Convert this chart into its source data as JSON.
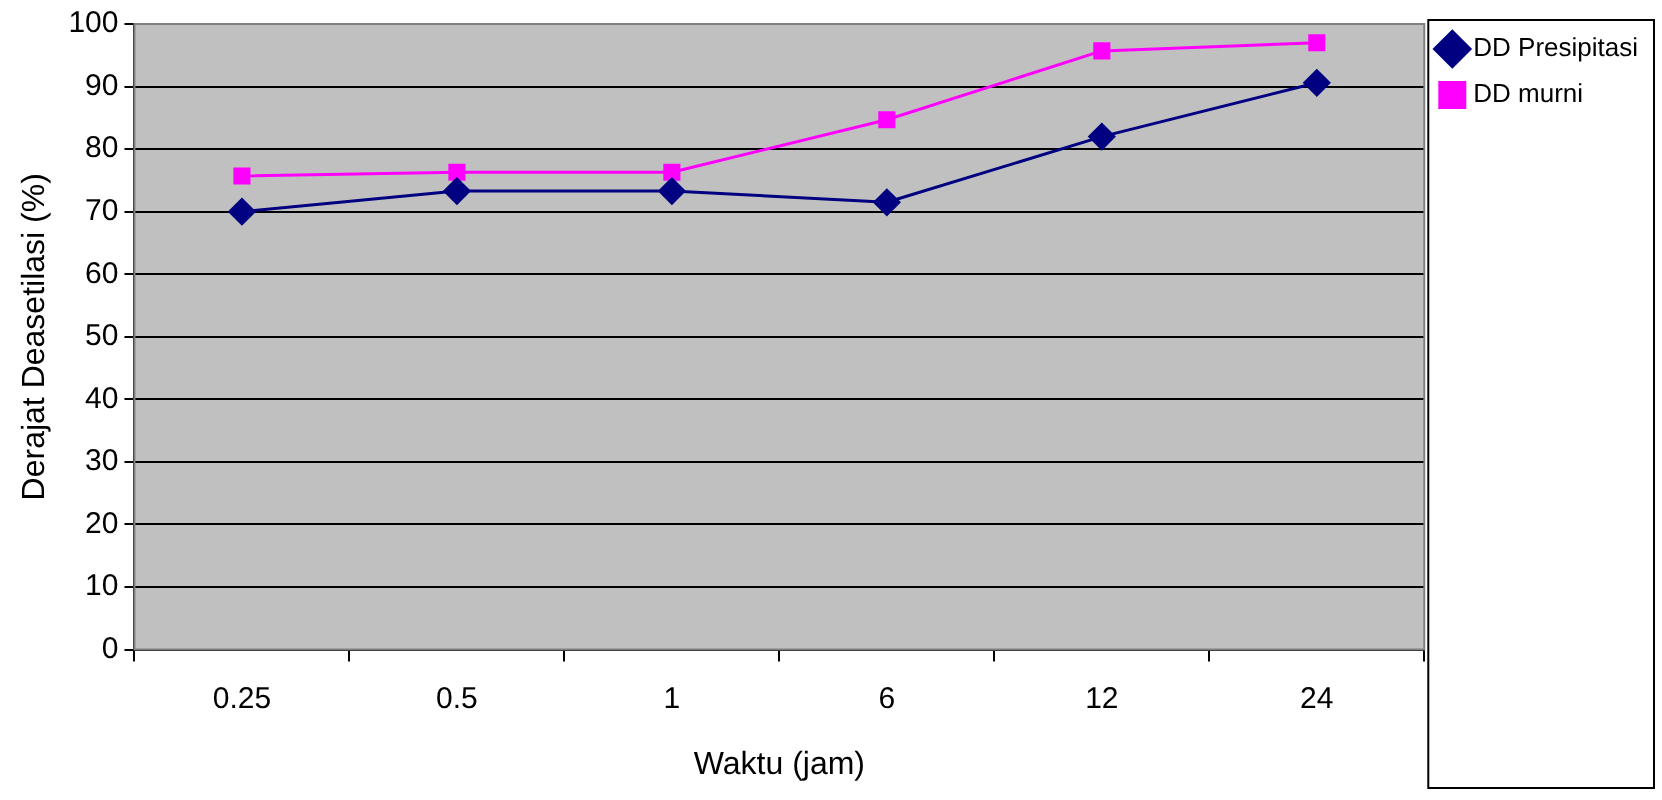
{
  "chart_data": {
    "type": "line",
    "xlabel": "Waktu (jam)",
    "ylabel": "Derajat Deasetilasi (%)",
    "categories": [
      "0.25",
      "0.5",
      "1",
      "6",
      "12",
      "24"
    ],
    "series": [
      {
        "name": "DD Presipitasi",
        "color": "#000080",
        "values": [
          70,
          73.3,
          73.3,
          71.5,
          82,
          90.6
        ],
        "marker": "diamond"
      },
      {
        "name": "DD murni",
        "color": "#ff00ff",
        "values": [
          75.7,
          76.3,
          76.3,
          84.7,
          95.7,
          97
        ],
        "marker": "square"
      }
    ],
    "ylim": [
      0,
      100
    ],
    "yticks": [
      0,
      10,
      20,
      30,
      40,
      50,
      60,
      70,
      80,
      90,
      100
    ],
    "grid": "y",
    "legend": "top right",
    "line_style": "solid"
  }
}
